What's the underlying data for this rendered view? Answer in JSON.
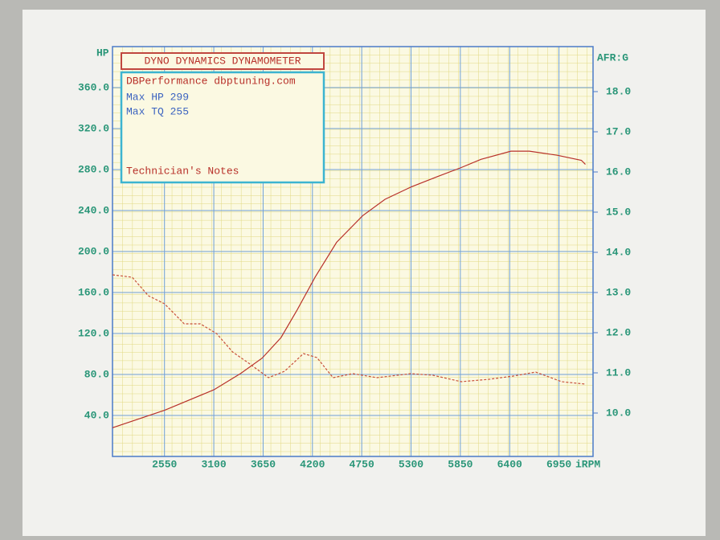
{
  "chart_data": {
    "type": "line",
    "title": "DYNO DYNAMICS DYNAMOMETER",
    "annotations": [
      "DBPerformance dbptuning.com",
      "Max HP 299",
      "Max TQ 255",
      "Technician's Notes"
    ],
    "ylabel": "HP",
    "y2label": "AFR:G",
    "xlabel": "iRPM",
    "xlim": [
      1970,
      7330
    ],
    "xticks": [
      2550,
      3100,
      3650,
      4200,
      4750,
      5300,
      5850,
      6400,
      6950
    ],
    "ylim": [
      0,
      400
    ],
    "yticks": [
      {
        "value": 40,
        "label": "40.0"
      },
      {
        "value": 80,
        "label": "80.0"
      },
      {
        "value": 120,
        "label": "120.0"
      },
      {
        "value": 160,
        "label": "160.0"
      },
      {
        "value": 200,
        "label": "200.0"
      },
      {
        "value": 240,
        "label": "240.0"
      },
      {
        "value": 280,
        "label": "280.0"
      },
      {
        "value": 320,
        "label": "320.0"
      },
      {
        "value": 360,
        "label": "360.0"
      }
    ],
    "y2lim": [
      8.92,
      19.12
    ],
    "y2ticks": [
      {
        "value": 10,
        "label": "10.0"
      },
      {
        "value": 11,
        "label": "11.0"
      },
      {
        "value": 12,
        "label": "12.0"
      },
      {
        "value": 13,
        "label": "13.0"
      },
      {
        "value": 14,
        "label": "14.0"
      },
      {
        "value": 15,
        "label": "15.0"
      },
      {
        "value": 16,
        "label": "16.0"
      },
      {
        "value": 17,
        "label": "17.0"
      },
      {
        "value": 18,
        "label": "18.0"
      }
    ],
    "grid": true,
    "series": [
      {
        "color": "#b8312a",
        "dashed": false,
        "x": [
          1970,
          2550,
          3100,
          3400,
          3640,
          3850,
          4030,
          4230,
          4470,
          4760,
          5010,
          5300,
          5590,
          5860,
          6080,
          6415,
          6620,
          6930,
          7200,
          7245
        ],
        "values": [
          28,
          45,
          65,
          81,
          96,
          116,
          143,
          175,
          209,
          235,
          251,
          263,
          273,
          282,
          290,
          298,
          298,
          294,
          289,
          285
        ]
      },
      {
        "color": "#c8503a",
        "dashed": true,
        "axis": "y2",
        "x": [
          1970,
          2190,
          2370,
          2550,
          2770,
          2950,
          3130,
          3310,
          3490,
          3710,
          3890,
          4100,
          4250,
          4430,
          4650,
          4920,
          5300,
          5545,
          5860,
          6170,
          6440,
          6690,
          6980,
          7245
        ],
        "values": [
          13.44,
          13.38,
          12.92,
          12.72,
          12.22,
          12.22,
          11.98,
          11.52,
          11.24,
          10.88,
          11.04,
          11.48,
          11.38,
          10.88,
          10.98,
          10.88,
          10.98,
          10.94,
          10.78,
          10.84,
          10.92,
          11.02,
          10.78,
          10.72
        ]
      }
    ]
  }
}
